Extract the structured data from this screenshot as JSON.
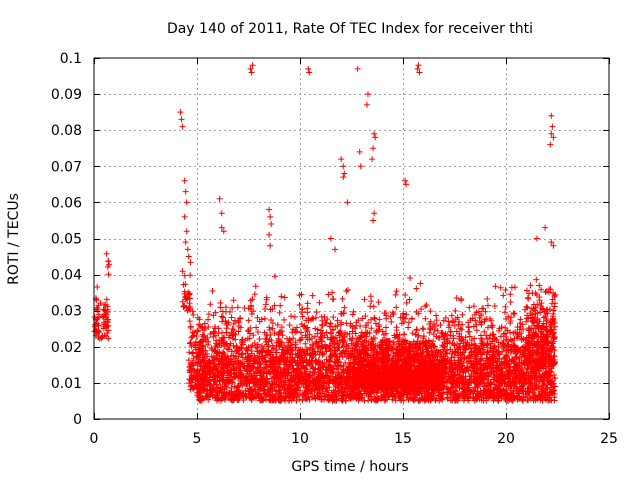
{
  "chart_data": {
    "type": "scatter",
    "title": "Day 140 of 2011, Rate Of TEC Index for receiver thti",
    "xlabel": "GPS time / hours",
    "ylabel": "ROTI / TECUs",
    "xlim": [
      0,
      25
    ],
    "ylim": [
      0,
      0.1
    ],
    "xticks": [
      0,
      5,
      10,
      15,
      20,
      25
    ],
    "xtick_labels": [
      "0",
      "5",
      "10",
      "15",
      "20",
      "25"
    ],
    "yticks": [
      0,
      0.01,
      0.02,
      0.03,
      0.04,
      0.05,
      0.06,
      0.07,
      0.08,
      0.09,
      0.1
    ],
    "ytick_labels": [
      "0",
      "0.01",
      "0.02",
      "0.03",
      "0.04",
      "0.05",
      "0.06",
      "0.07",
      "0.08",
      "0.09",
      "0.1"
    ],
    "grid": true,
    "marker": "plus",
    "color": "#ff0000",
    "series": [
      {
        "name": "ROTI",
        "outliers": [
          [
            4.2,
            0.085
          ],
          [
            4.25,
            0.083
          ],
          [
            4.3,
            0.081
          ],
          [
            4.4,
            0.066
          ],
          [
            4.45,
            0.063
          ],
          [
            4.5,
            0.06
          ],
          [
            4.4,
            0.056
          ],
          [
            4.5,
            0.052
          ],
          [
            4.45,
            0.049
          ],
          [
            4.55,
            0.047
          ],
          [
            4.6,
            0.045
          ],
          [
            6.1,
            0.061
          ],
          [
            6.2,
            0.057
          ],
          [
            6.2,
            0.053
          ],
          [
            6.3,
            0.052
          ],
          [
            7.6,
            0.097
          ],
          [
            7.7,
            0.098
          ],
          [
            7.65,
            0.096
          ],
          [
            8.5,
            0.058
          ],
          [
            8.55,
            0.056
          ],
          [
            8.6,
            0.054
          ],
          [
            8.5,
            0.051
          ],
          [
            8.55,
            0.048
          ],
          [
            10.4,
            0.097
          ],
          [
            10.45,
            0.096
          ],
          [
            11.5,
            0.05
          ],
          [
            11.7,
            0.047
          ],
          [
            12.0,
            0.072
          ],
          [
            12.1,
            0.07
          ],
          [
            12.15,
            0.068
          ],
          [
            12.1,
            0.067
          ],
          [
            12.3,
            0.06
          ],
          [
            12.8,
            0.097
          ],
          [
            12.9,
            0.074
          ],
          [
            12.95,
            0.07
          ],
          [
            13.3,
            0.09
          ],
          [
            13.25,
            0.087
          ],
          [
            13.6,
            0.079
          ],
          [
            13.65,
            0.078
          ],
          [
            13.55,
            0.075
          ],
          [
            13.5,
            0.072
          ],
          [
            13.6,
            0.057
          ],
          [
            13.55,
            0.055
          ],
          [
            15.1,
            0.066
          ],
          [
            15.15,
            0.065
          ],
          [
            15.7,
            0.097
          ],
          [
            15.75,
            0.098
          ],
          [
            15.8,
            0.096
          ],
          [
            21.9,
            0.053
          ],
          [
            22.2,
            0.084
          ],
          [
            22.25,
            0.081
          ],
          [
            22.2,
            0.079
          ],
          [
            22.3,
            0.078
          ],
          [
            22.15,
            0.076
          ],
          [
            22.2,
            0.049
          ],
          [
            22.3,
            0.048
          ],
          [
            21.5,
            0.05
          ]
        ],
        "clusters": [
          {
            "x0": 0.0,
            "x1": 0.7,
            "ymin": 0.022,
            "ymax": 0.038,
            "n": 70
          },
          {
            "x0": 0.6,
            "x1": 0.75,
            "ymin": 0.04,
            "ymax": 0.047,
            "n": 6
          },
          {
            "x0": 4.3,
            "x1": 4.7,
            "ymin": 0.03,
            "ymax": 0.045,
            "n": 30
          },
          {
            "x0": 4.6,
            "x1": 5.4,
            "ymin": 0.008,
            "ymax": 0.033,
            "n": 140
          },
          {
            "x0": 5.0,
            "x1": 22.4,
            "ymin": 0.005,
            "ymax": 0.022,
            "n": 2600
          },
          {
            "x0": 5.0,
            "x1": 22.4,
            "ymin": 0.01,
            "ymax": 0.032,
            "n": 1400
          },
          {
            "x0": 5.5,
            "x1": 22.4,
            "ymin": 0.018,
            "ymax": 0.04,
            "n": 450
          },
          {
            "x0": 12.5,
            "x1": 17.0,
            "ymin": 0.008,
            "ymax": 0.022,
            "n": 900
          },
          {
            "x0": 21.0,
            "x1": 22.4,
            "ymin": 0.015,
            "ymax": 0.04,
            "n": 220
          }
        ]
      }
    ]
  }
}
